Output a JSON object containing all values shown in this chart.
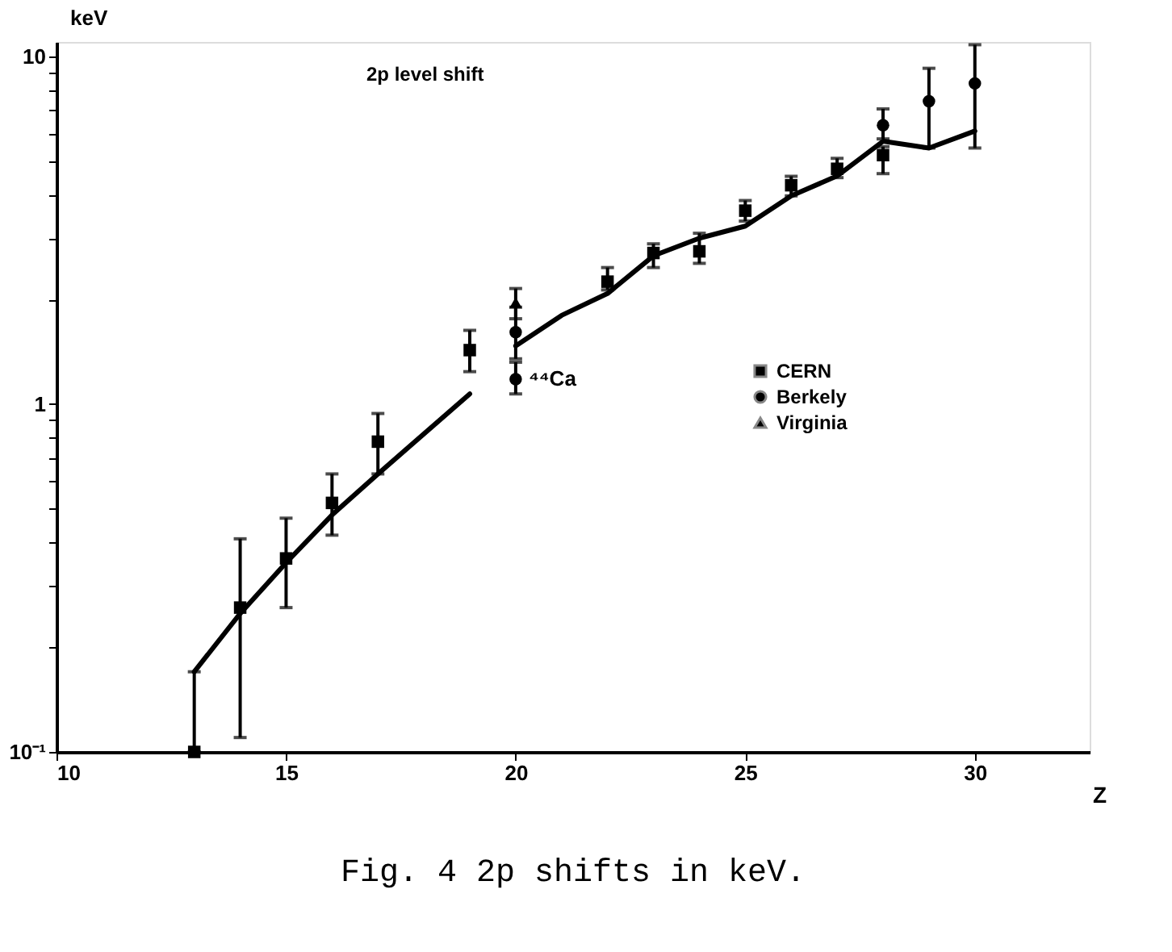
{
  "chart_data": {
    "type": "scatter",
    "title": "2p level shift",
    "xlabel": "Z",
    "ylabel": "keV",
    "xlim": [
      10,
      32.5
    ],
    "xticks": [
      10,
      15,
      20,
      25,
      30
    ],
    "ylim": [
      0.1,
      11
    ],
    "log": true,
    "yticks": [
      {
        "value": 0.1,
        "label": "10⁻¹"
      },
      {
        "value": 0.2,
        "label": null
      },
      {
        "value": 0.3,
        "label": null
      },
      {
        "value": 0.4,
        "label": null
      },
      {
        "value": 0.5,
        "label": null
      },
      {
        "value": 0.6,
        "label": null
      },
      {
        "value": 0.7,
        "label": null
      },
      {
        "value": 0.8,
        "label": null
      },
      {
        "value": 0.9,
        "label": null
      },
      1,
      {
        "value": 2,
        "label": null
      },
      {
        "value": 3,
        "label": null
      },
      {
        "value": 4,
        "label": null
      },
      {
        "value": 5,
        "label": null
      },
      {
        "value": 6,
        "label": null
      },
      {
        "value": 7,
        "label": null
      },
      {
        "value": 8,
        "label": null
      },
      {
        "value": 9,
        "label": null
      },
      10
    ],
    "grid": false,
    "legend": "right",
    "series": [
      {
        "name": "CERN",
        "color": "#000000",
        "marker": "square",
        "x": [
          13,
          14,
          15,
          16,
          17,
          19,
          22,
          23,
          24,
          25,
          26,
          27,
          28
        ],
        "values": [
          0.1,
          0.26,
          0.36,
          0.52,
          0.78,
          1.43,
          2.25,
          2.72,
          2.75,
          3.6,
          4.26,
          4.75,
          5.2
        ],
        "errors": [
          [
            0.1,
            0.17
          ],
          [
            0.11,
            0.41
          ],
          [
            0.26,
            0.47
          ],
          [
            0.42,
            0.63
          ],
          [
            0.63,
            0.94
          ],
          [
            1.24,
            1.63
          ],
          [
            2.13,
            2.47
          ],
          [
            2.47,
            2.89
          ],
          [
            2.54,
            3.1
          ],
          [
            3.36,
            3.85
          ],
          [
            3.97,
            4.52
          ],
          [
            4.48,
            5.09
          ],
          [
            4.6,
            5.5
          ]
        ]
      },
      {
        "name": "Berkely",
        "color": "#000000",
        "marker": "circle",
        "x": [
          20,
          20,
          28,
          29,
          30
        ],
        "values": [
          1.61,
          1.18,
          6.34,
          7.43,
          8.36
        ],
        "errors": [
          [
            1.35,
            1.9
          ],
          [
            1.07,
            1.32
          ],
          [
            5.79,
            7.06
          ],
          [
            5.45,
            9.24
          ],
          [
            5.45,
            10.8
          ]
        ]
      },
      {
        "name": "Virginia",
        "color": "#000000",
        "marker": "triangle",
        "x": [
          20
        ],
        "values": [
          1.96
        ],
        "errors": [
          [
            1.76,
            2.15
          ]
        ]
      },
      {
        "type": "line",
        "color": "#000000",
        "line_style": "solid",
        "x": [
          13,
          14,
          15,
          16,
          17,
          19,
          19.3,
          20,
          21,
          22,
          23,
          24,
          25,
          26,
          27,
          28,
          29,
          30
        ],
        "values": [
          0.17,
          0.25,
          0.35,
          0.48,
          0.63,
          1.07,
          null,
          1.47,
          1.8,
          2.08,
          2.67,
          3.0,
          3.25,
          3.97,
          4.53,
          5.7,
          5.45,
          6.1
        ]
      }
    ],
    "annotations": [
      {
        "text": "⁴⁴Ca",
        "x": 20,
        "y": 1.18
      },
      "Fig. 4   2p shifts in keV."
    ]
  }
}
